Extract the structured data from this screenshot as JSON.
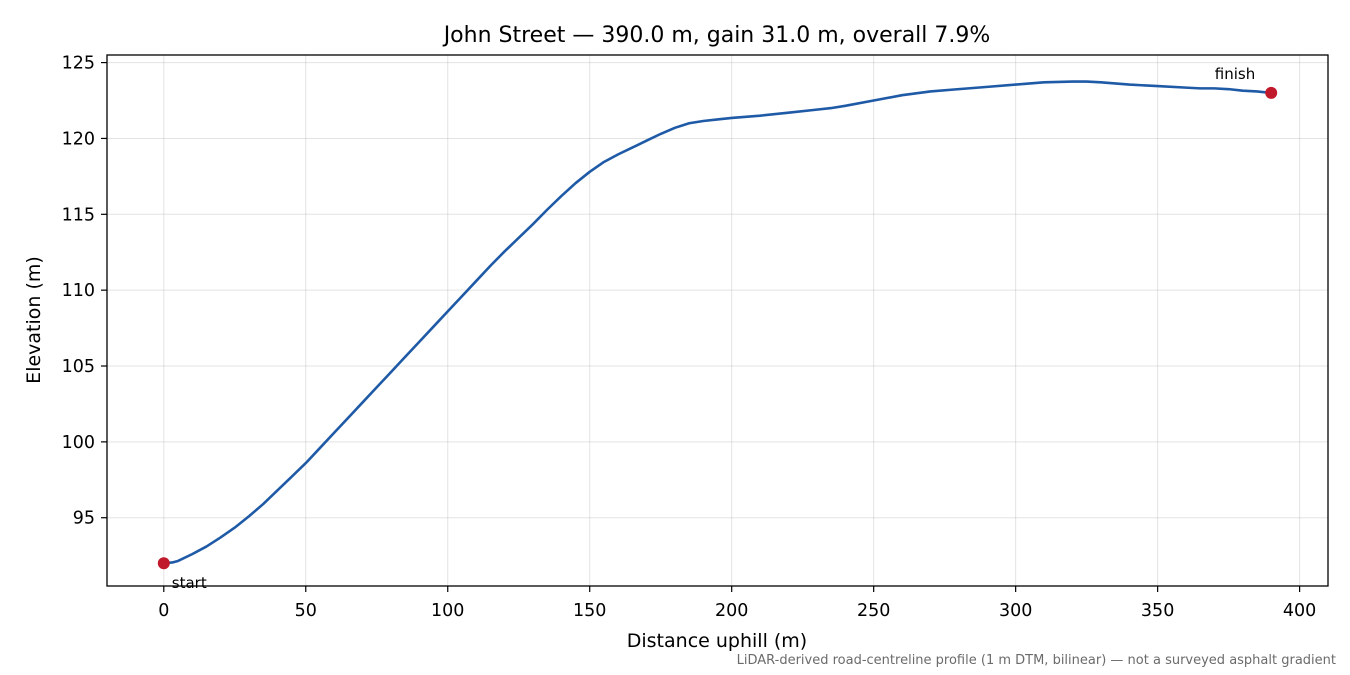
{
  "chart_data": {
    "type": "line",
    "title": "John Street — 390.0 m, gain 31.0 m, overall 7.9%",
    "xlabel": "Distance uphill (m)",
    "ylabel": "Elevation (m)",
    "xlim": [
      -20,
      410
    ],
    "ylim": [
      90.5,
      125.5
    ],
    "x_ticks": [
      0,
      50,
      100,
      150,
      200,
      250,
      300,
      350,
      400
    ],
    "y_ticks": [
      95,
      100,
      105,
      110,
      115,
      120,
      125
    ],
    "grid": true,
    "line_color": "#1f5aa6",
    "marker_color": "#c0192c",
    "series": [
      {
        "x": [
          0,
          3,
          5,
          10,
          15,
          20,
          25,
          30,
          35,
          40,
          45,
          50,
          55,
          60,
          65,
          70,
          75,
          80,
          85,
          90,
          95,
          100,
          105,
          110,
          115,
          120,
          125,
          130,
          135,
          140,
          145,
          150,
          155,
          160,
          165,
          170,
          175,
          180,
          185,
          190,
          195,
          200,
          210,
          220,
          230,
          235,
          240,
          250,
          260,
          270,
          280,
          290,
          300,
          310,
          320,
          325,
          330,
          340,
          350,
          360,
          365,
          370,
          375,
          380,
          385,
          390
        ],
        "values": [
          92.0,
          92.05,
          92.15,
          92.6,
          93.1,
          93.7,
          94.35,
          95.1,
          95.9,
          96.8,
          97.7,
          98.6,
          99.6,
          100.6,
          101.6,
          102.6,
          103.6,
          104.6,
          105.6,
          106.6,
          107.6,
          108.6,
          109.6,
          110.6,
          111.6,
          112.55,
          113.45,
          114.35,
          115.3,
          116.2,
          117.05,
          117.8,
          118.45,
          118.95,
          119.4,
          119.85,
          120.3,
          120.7,
          121.0,
          121.15,
          121.25,
          121.35,
          121.5,
          121.7,
          121.9,
          122.0,
          122.15,
          122.5,
          122.85,
          123.1,
          123.25,
          123.4,
          123.55,
          123.7,
          123.75,
          123.75,
          123.7,
          123.55,
          123.45,
          123.35,
          123.3,
          123.3,
          123.25,
          123.15,
          123.1,
          123.0
        ]
      }
    ],
    "annotations": [
      {
        "label": "start",
        "x": 0,
        "y": 92.0
      },
      {
        "label": "finish",
        "x": 390,
        "y": 123.0
      }
    ],
    "footnote": "LiDAR-derived road-centreline profile (1 m DTM, bilinear) — not a surveyed asphalt gradient"
  }
}
